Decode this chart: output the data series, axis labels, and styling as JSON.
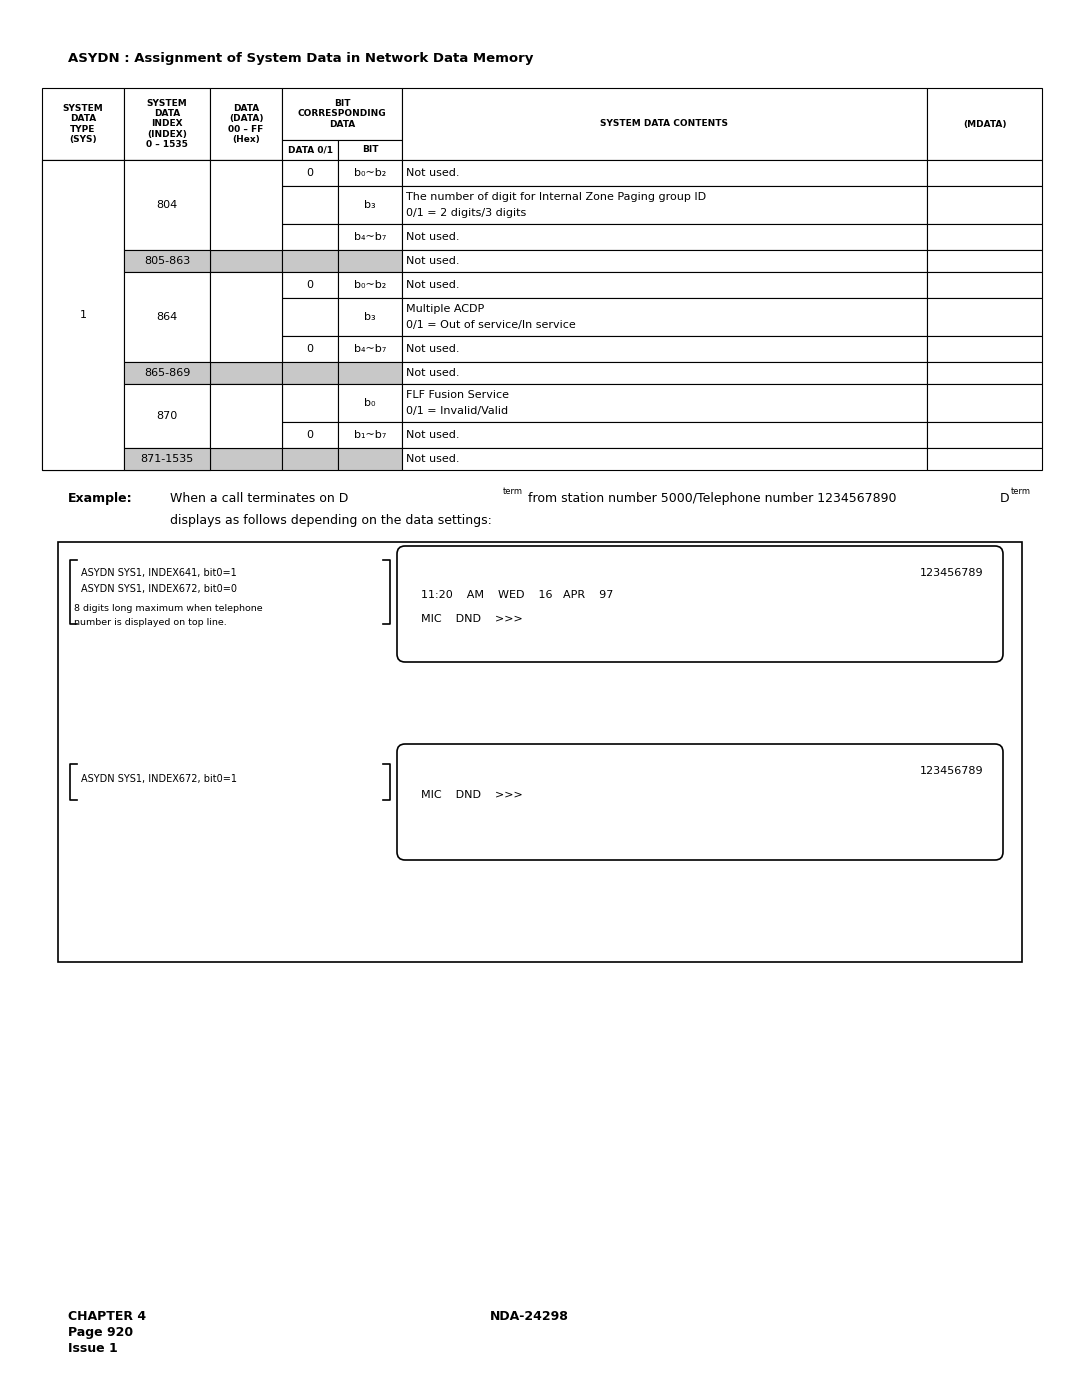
{
  "title": "ASYDN : Assignment of System Data in Network Data Memory",
  "page_footer_left": "CHAPTER 4\nPage 920\nIssue 1",
  "page_footer_center": "NDA-24298",
  "rows": [
    {
      "index": "804",
      "d01": "0",
      "bit": "b₀~b₂",
      "contents": "Not used.",
      "gray": false,
      "two_line": false
    },
    {
      "index": "804",
      "d01": "",
      "bit": "b₃",
      "contents": "The number of digit for Internal Zone Paging group ID\n0/1 = 2 digits/3 digits",
      "gray": false,
      "two_line": true
    },
    {
      "index": "804",
      "d01": "",
      "bit": "b₄~b₇",
      "contents": "Not used.",
      "gray": false,
      "two_line": false
    },
    {
      "index": "805-863",
      "d01": "",
      "bit": "",
      "contents": "Not used.",
      "gray": true,
      "two_line": false
    },
    {
      "index": "864",
      "d01": "0",
      "bit": "b₀~b₂",
      "contents": "Not used.",
      "gray": false,
      "two_line": false
    },
    {
      "index": "864",
      "d01": "",
      "bit": "b₃",
      "contents": "Multiple ACDP\n0/1 = Out of service/In service",
      "gray": false,
      "two_line": true
    },
    {
      "index": "864",
      "d01": "0",
      "bit": "b₄~b₇",
      "contents": "Not used.",
      "gray": false,
      "two_line": false
    },
    {
      "index": "865-869",
      "d01": "",
      "bit": "",
      "contents": "Not used.",
      "gray": true,
      "two_line": false
    },
    {
      "index": "870",
      "d01": "",
      "bit": "b₀",
      "contents": "FLF Fusion Service\n0/1 = Invalid/Valid",
      "gray": false,
      "two_line": true
    },
    {
      "index": "870",
      "d01": "0",
      "bit": "b₁~b₇",
      "contents": "Not used.",
      "gray": false,
      "two_line": false
    },
    {
      "index": "871-1535",
      "d01": "",
      "bit": "",
      "contents": "Not used.",
      "gray": true,
      "two_line": false
    }
  ],
  "gray_color": "#c8c8c8",
  "bg_color": "#ffffff"
}
